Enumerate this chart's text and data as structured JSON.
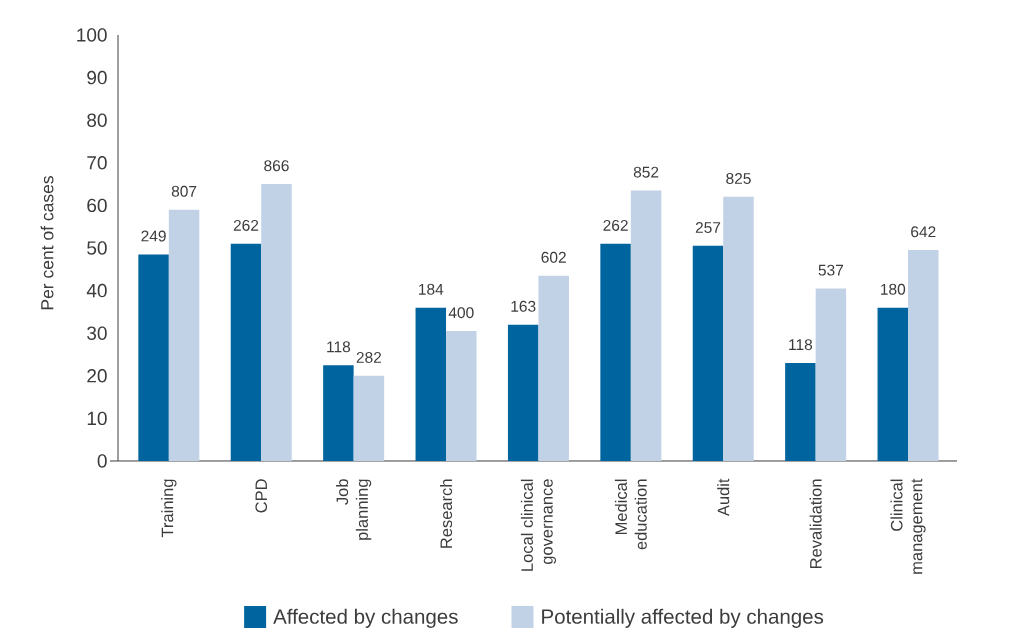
{
  "chart_data": {
    "type": "bar",
    "ylabel": "Per cent of cases",
    "categories": [
      "Training",
      "CPD",
      "Job planning",
      "Research",
      "Local clinical governance",
      "Medical education",
      "Audit",
      "Revalidation",
      "Clinical management"
    ],
    "series": [
      {
        "name": "Affected by changes",
        "color": "#00649e",
        "values": [
          48.5,
          51,
          22.5,
          36,
          32,
          51,
          50.5,
          23,
          36
        ]
      },
      {
        "name": "Potentially affected by changes",
        "color": "#c1d2e6",
        "values": [
          59,
          65,
          20,
          30.5,
          43.5,
          63.5,
          62,
          40.5,
          49.5
        ]
      }
    ],
    "annotations": [
      {
        "text": "249",
        "x": "Training",
        "y": 48.5
      },
      {
        "text": "807",
        "x": "Training",
        "y": 59
      },
      {
        "text": "262",
        "x": "CPD",
        "y": 51
      },
      {
        "text": "866",
        "x": "CPD",
        "y": 65
      },
      {
        "text": "118",
        "x": "Job planning",
        "y": 22.5
      },
      {
        "text": "282",
        "x": "Job planning",
        "y": 20
      },
      {
        "text": "184",
        "x": "Research",
        "y": 36
      },
      {
        "text": "400",
        "x": "Research",
        "y": 30.5
      },
      {
        "text": "163",
        "x": "Local clinical governance",
        "y": 32
      },
      {
        "text": "602",
        "x": "Local clinical governance",
        "y": 43.5
      },
      {
        "text": "262",
        "x": "Medical education",
        "y": 51
      },
      {
        "text": "852",
        "x": "Medical education",
        "y": 63.5
      },
      {
        "text": "257",
        "x": "Audit",
        "y": 50.5
      },
      {
        "text": "825",
        "x": "Audit",
        "y": 62
      },
      {
        "text": "118",
        "x": "Revalidation",
        "y": 23
      },
      {
        "text": "537",
        "x": "Revalidation",
        "y": 40.5
      },
      {
        "text": "180",
        "x": "Clinical management",
        "y": 36
      },
      {
        "text": "642",
        "x": "Clinical management",
        "y": 49.5
      }
    ],
    "ylim": [
      0,
      100
    ],
    "yticks": [
      0,
      10,
      20,
      30,
      40,
      50,
      60,
      70,
      80,
      90,
      100
    ],
    "legend": "bottom"
  }
}
